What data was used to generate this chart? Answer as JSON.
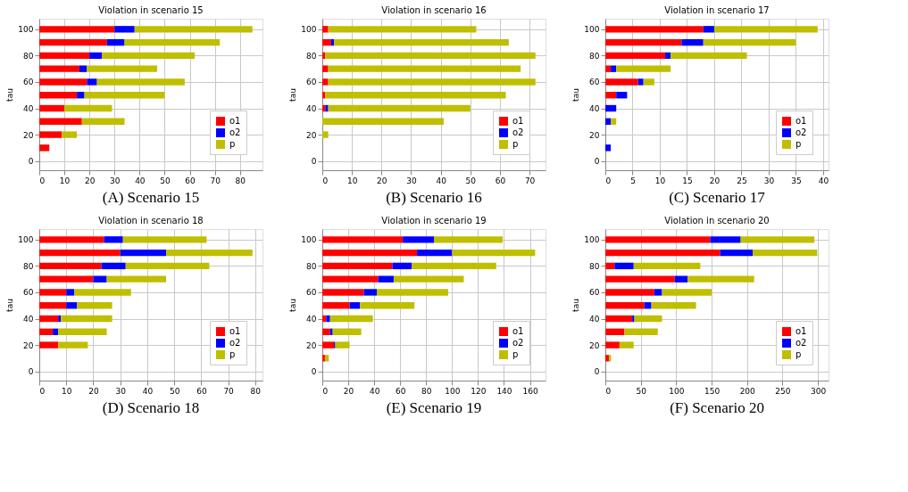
{
  "chart_data": [
    {
      "type": "bar",
      "orientation": "horizontal",
      "stacked": true,
      "title": "Violation in scenario 15",
      "ylabel": "tau",
      "x": [
        10,
        20,
        30,
        40,
        50,
        60,
        70,
        80,
        90,
        100
      ],
      "series": [
        {
          "name": "o1",
          "color": "#ff0000",
          "values": [
            4,
            9,
            17,
            10,
            15,
            19,
            16,
            20,
            27,
            30
          ]
        },
        {
          "name": "o2",
          "color": "#0000ff",
          "values": [
            0,
            0,
            0,
            0,
            3,
            4,
            3,
            5,
            7,
            8
          ]
        },
        {
          "name": "p",
          "color": "#bfbf00",
          "values": [
            0,
            6,
            17,
            19,
            32,
            35,
            28,
            37,
            38,
            47
          ]
        }
      ],
      "xlim": [
        0,
        89
      ],
      "xticks": [
        0,
        10,
        20,
        30,
        40,
        50,
        60,
        70,
        80
      ],
      "ylim": [
        -7,
        108
      ],
      "yticks": [
        0,
        20,
        40,
        60,
        80,
        100
      ],
      "grid": true,
      "legend": "bottom right",
      "annotations": [
        "(A) Scenario 15"
      ]
    },
    {
      "type": "bar",
      "orientation": "horizontal",
      "stacked": true,
      "title": "Violation in scenario 16",
      "ylabel": "tau",
      "x": [
        10,
        20,
        30,
        40,
        50,
        60,
        70,
        80,
        90,
        100
      ],
      "series": [
        {
          "name": "o1",
          "color": "#ff0000",
          "values": [
            0,
            0,
            0,
            1,
            1,
            2,
            2,
            1,
            3,
            2
          ]
        },
        {
          "name": "o2",
          "color": "#0000ff",
          "values": [
            0,
            0,
            0,
            1,
            0,
            0,
            0,
            0,
            1,
            0
          ]
        },
        {
          "name": "p",
          "color": "#bfbf00",
          "values": [
            0,
            2,
            41,
            48,
            61,
            70,
            65,
            71,
            59,
            50
          ]
        }
      ],
      "xlim": [
        0,
        75.4
      ],
      "xticks": [
        0,
        10,
        20,
        30,
        40,
        50,
        60,
        70
      ],
      "ylim": [
        -7,
        108
      ],
      "yticks": [
        0,
        20,
        40,
        60,
        80,
        100
      ],
      "grid": true,
      "legend": "bottom right",
      "annotations": [
        "(B) Scenario 16"
      ]
    },
    {
      "type": "bar",
      "orientation": "horizontal",
      "stacked": true,
      "title": "Violation in scenario 17",
      "ylabel": "tau",
      "x": [
        10,
        20,
        30,
        40,
        50,
        60,
        70,
        80,
        90,
        100
      ],
      "series": [
        {
          "name": "o1",
          "color": "#ff0000",
          "values": [
            0,
            0,
            0,
            0,
            2,
            6,
            1,
            11,
            14,
            18
          ]
        },
        {
          "name": "o2",
          "color": "#0000ff",
          "values": [
            1,
            0,
            1,
            2,
            2,
            1,
            1,
            1,
            4,
            2
          ]
        },
        {
          "name": "p",
          "color": "#bfbf00",
          "values": [
            0,
            0,
            1,
            0,
            0,
            2,
            10,
            14,
            17,
            19
          ]
        }
      ],
      "xlim": [
        0,
        41
      ],
      "xticks": [
        0,
        5,
        10,
        15,
        20,
        25,
        30,
        35,
        40
      ],
      "ylim": [
        -7,
        108
      ],
      "yticks": [
        0,
        20,
        40,
        60,
        80,
        100
      ],
      "grid": true,
      "legend": "bottom right",
      "annotations": [
        "(C) Scenario 17"
      ]
    },
    {
      "type": "bar",
      "orientation": "horizontal",
      "stacked": true,
      "title": "Violation in scenario 18",
      "ylabel": "tau",
      "x": [
        10,
        20,
        30,
        40,
        50,
        60,
        70,
        80,
        90,
        100
      ],
      "series": [
        {
          "name": "o1",
          "color": "#ff0000",
          "values": [
            0,
            7,
            5,
            7,
            10,
            10,
            20,
            23,
            30,
            24
          ]
        },
        {
          "name": "o2",
          "color": "#0000ff",
          "values": [
            0,
            0,
            2,
            1,
            4,
            3,
            5,
            9,
            17,
            7
          ]
        },
        {
          "name": "p",
          "color": "#bfbf00",
          "values": [
            0,
            11,
            18,
            19,
            13,
            21,
            22,
            31,
            32,
            31
          ]
        }
      ],
      "xlim": [
        0,
        82.7
      ],
      "xticks": [
        0,
        10,
        20,
        30,
        40,
        50,
        60,
        70,
        80
      ],
      "ylim": [
        -7,
        108
      ],
      "yticks": [
        0,
        20,
        40,
        60,
        80,
        100
      ],
      "grid": true,
      "legend": "bottom right",
      "annotations": [
        "(D) Scenario 18"
      ]
    },
    {
      "type": "bar",
      "orientation": "horizontal",
      "stacked": true,
      "title": "Violation in scenario 19",
      "ylabel": "tau",
      "x": [
        10,
        20,
        30,
        40,
        50,
        60,
        70,
        80,
        90,
        100
      ],
      "series": [
        {
          "name": "o1",
          "color": "#ff0000",
          "values": [
            2,
            9,
            6,
            3,
            21,
            32,
            43,
            54,
            73,
            62
          ]
        },
        {
          "name": "o2",
          "color": "#0000ff",
          "values": [
            0,
            1,
            2,
            3,
            8,
            10,
            12,
            15,
            27,
            24
          ]
        },
        {
          "name": "p",
          "color": "#bfbf00",
          "values": [
            3,
            11,
            22,
            33,
            42,
            55,
            54,
            65,
            64,
            53
          ]
        }
      ],
      "xlim": [
        0,
        172
      ],
      "xticks": [
        0,
        20,
        40,
        60,
        80,
        100,
        120,
        140,
        160
      ],
      "ylim": [
        -7,
        108
      ],
      "yticks": [
        0,
        20,
        40,
        60,
        80,
        100
      ],
      "grid": true,
      "legend": "bottom right",
      "annotations": [
        "(E) Scenario 19"
      ]
    },
    {
      "type": "bar",
      "orientation": "horizontal",
      "stacked": true,
      "title": "Violation in scenario 20",
      "ylabel": "tau",
      "x": [
        10,
        20,
        30,
        40,
        50,
        60,
        70,
        80,
        90,
        100
      ],
      "series": [
        {
          "name": "o1",
          "color": "#ff0000",
          "values": [
            5,
            20,
            27,
            38,
            55,
            69,
            98,
            13,
            162,
            148
          ]
        },
        {
          "name": "o2",
          "color": "#0000ff",
          "values": [
            0,
            0,
            0,
            3,
            10,
            11,
            18,
            27,
            46,
            43
          ]
        },
        {
          "name": "p",
          "color": "#bfbf00",
          "values": [
            3,
            20,
            47,
            39,
            63,
            70,
            94,
            94,
            91,
            104
          ]
        }
      ],
      "xlim": [
        0,
        315
      ],
      "xticks": [
        0,
        50,
        100,
        150,
        200,
        250,
        300
      ],
      "ylim": [
        -7,
        108
      ],
      "yticks": [
        0,
        20,
        40,
        60,
        80,
        100
      ],
      "grid": true,
      "legend": "bottom right",
      "annotations": [
        "(F) Scenario 20"
      ]
    }
  ]
}
